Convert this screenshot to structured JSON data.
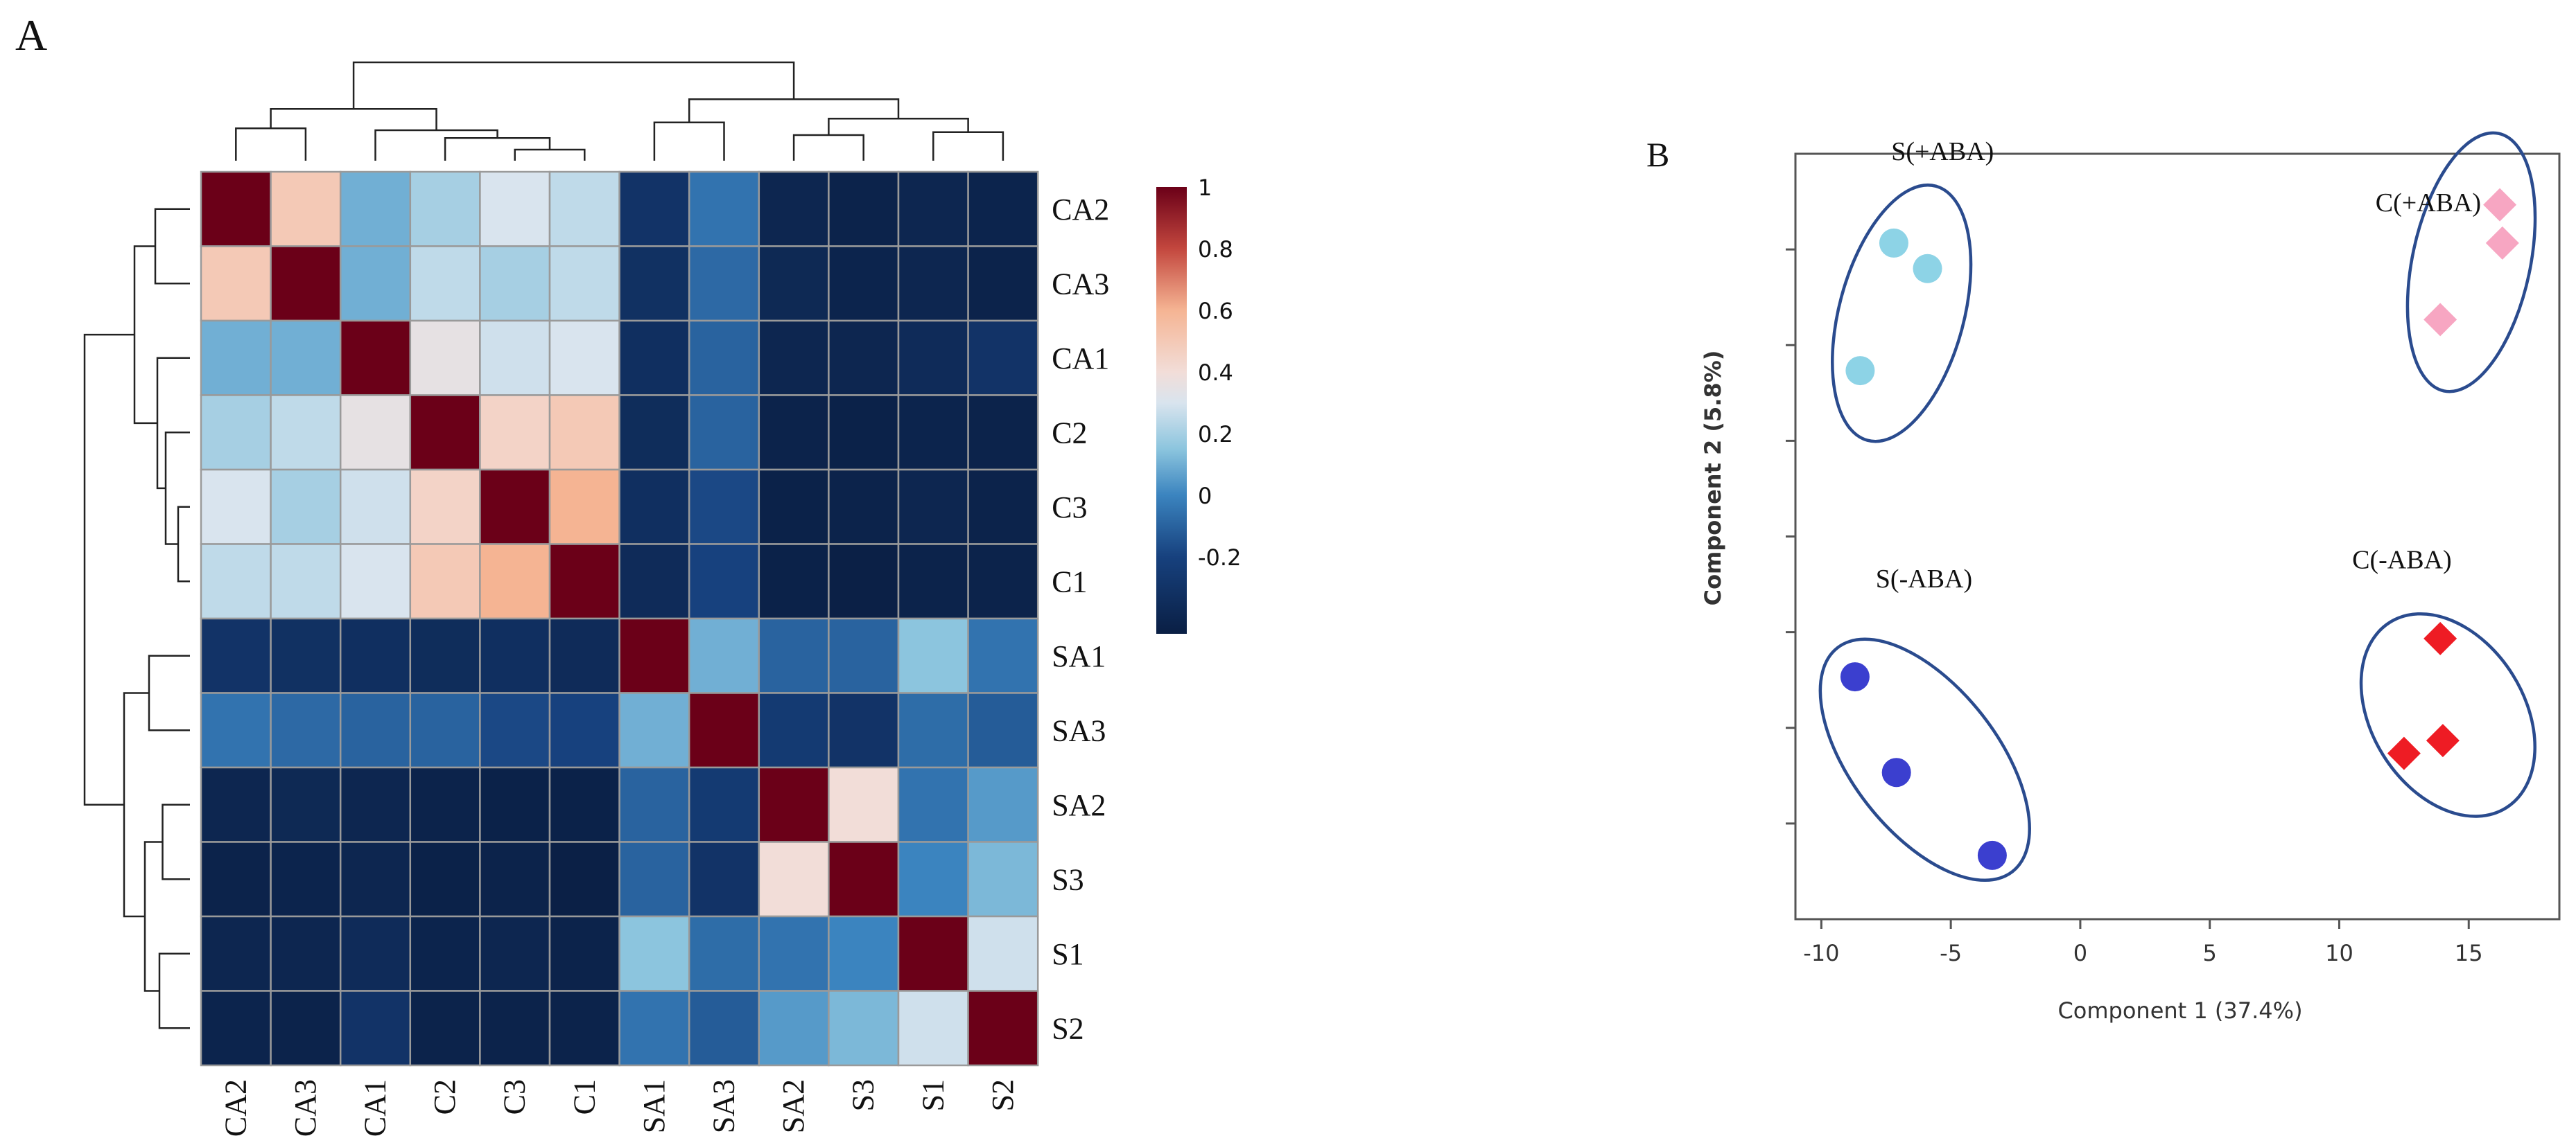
{
  "panels": {
    "a_label": "A",
    "b_label": "B"
  },
  "chart_data": [
    {
      "type": "heatmap",
      "samples": [
        "CA2",
        "CA3",
        "CA1",
        "C2",
        "C3",
        "C1",
        "SA1",
        "SA3",
        "SA2",
        "S3",
        "S1",
        "S2"
      ],
      "row_labels": [
        "CA2",
        "CA3",
        "CA1",
        "C2",
        "C3",
        "C1",
        "SA1",
        "SA3",
        "SA2",
        "S3",
        "S1",
        "S2"
      ],
      "col_labels": [
        "CA2",
        "CA3",
        "CA1",
        "C2",
        "C3",
        "C1",
        "SA1",
        "SA3",
        "SA2",
        "S3",
        "S1",
        "S2"
      ],
      "values": [
        [
          1.0,
          0.5,
          0.1,
          0.2,
          0.3,
          0.25,
          -0.3,
          -0.05,
          -0.4,
          -0.42,
          -0.4,
          -0.41
        ],
        [
          0.5,
          1.0,
          0.1,
          0.25,
          0.2,
          0.25,
          -0.32,
          -0.08,
          -0.38,
          -0.41,
          -0.4,
          -0.42
        ],
        [
          0.1,
          0.1,
          1.0,
          0.35,
          0.28,
          0.3,
          -0.33,
          -0.1,
          -0.4,
          -0.4,
          -0.36,
          -0.3
        ],
        [
          0.2,
          0.25,
          0.35,
          1.0,
          0.45,
          0.5,
          -0.35,
          -0.1,
          -0.42,
          -0.43,
          -0.41,
          -0.42
        ],
        [
          0.3,
          0.2,
          0.28,
          0.45,
          1.0,
          0.6,
          -0.33,
          -0.18,
          -0.43,
          -0.42,
          -0.4,
          -0.42
        ],
        [
          0.25,
          0.25,
          0.3,
          0.5,
          0.6,
          1.0,
          -0.36,
          -0.2,
          -0.43,
          -0.44,
          -0.42,
          -0.42
        ],
        [
          -0.3,
          -0.32,
          -0.33,
          -0.35,
          -0.33,
          -0.36,
          1.0,
          0.1,
          -0.1,
          -0.1,
          0.15,
          -0.05
        ],
        [
          -0.05,
          -0.08,
          -0.1,
          -0.1,
          -0.18,
          -0.2,
          0.1,
          1.0,
          -0.25,
          -0.3,
          -0.07,
          -0.12
        ],
        [
          -0.4,
          -0.38,
          -0.4,
          -0.42,
          -0.43,
          -0.43,
          -0.1,
          -0.25,
          1.0,
          0.4,
          -0.05,
          0.05
        ],
        [
          -0.42,
          -0.41,
          -0.4,
          -0.43,
          -0.42,
          -0.44,
          -0.1,
          -0.3,
          0.4,
          1.0,
          0.0,
          0.12
        ],
        [
          -0.4,
          -0.4,
          -0.36,
          -0.41,
          -0.4,
          -0.42,
          0.15,
          -0.07,
          -0.05,
          0.0,
          1.0,
          0.28
        ],
        [
          -0.41,
          -0.42,
          -0.3,
          -0.42,
          -0.42,
          -0.42,
          -0.05,
          -0.12,
          0.05,
          0.12,
          0.28,
          1.0
        ]
      ],
      "colorbar": {
        "ticks": [
          1,
          0.8,
          0.6,
          0.4,
          0.2,
          0,
          -0.2
        ],
        "min": -0.45,
        "max": 1.0
      },
      "color_stops": [
        {
          "v": -0.45,
          "c": "#0a1f44"
        },
        {
          "v": -0.2,
          "c": "#17417e"
        },
        {
          "v": 0.0,
          "c": "#3b84bf"
        },
        {
          "v": 0.15,
          "c": "#8cc5de"
        },
        {
          "v": 0.3,
          "c": "#d9e4ee"
        },
        {
          "v": 0.4,
          "c": "#f2ddd8"
        },
        {
          "v": 0.6,
          "c": "#f5b493"
        },
        {
          "v": 0.8,
          "c": "#c3473e"
        },
        {
          "v": 1.0,
          "c": "#6b0018"
        }
      ],
      "dendrogram": "both"
    },
    {
      "type": "scatter",
      "xlabel": "Component 1 (37.4%)",
      "ylabel": "Component 2 (5.8%)",
      "xlim": [
        -11,
        18.5
      ],
      "ylim": [
        -6,
        6
      ],
      "x_ticks": [
        -10,
        -5,
        0,
        5,
        10,
        15
      ],
      "groups": [
        {
          "name": "S(+ABA)",
          "marker": "circle",
          "color": "#8dd3e6",
          "points": [
            [
              -7.2,
              4.6
            ],
            [
              -5.9,
              4.2
            ],
            [
              -8.5,
              2.6
            ]
          ]
        },
        {
          "name": "C(+ABA)",
          "marker": "diamond",
          "color": "#f7a6c2",
          "points": [
            [
              16.2,
              5.2
            ],
            [
              16.3,
              4.6
            ],
            [
              13.9,
              3.4
            ]
          ]
        },
        {
          "name": "S(-ABA)",
          "marker": "circle",
          "color": "#3b3fcf",
          "points": [
            [
              -8.7,
              -2.2
            ],
            [
              -7.1,
              -3.7
            ],
            [
              -3.4,
              -5.0
            ]
          ]
        },
        {
          "name": "C(-ABA)",
          "marker": "diamond",
          "color": "#ee1c24",
          "points": [
            [
              13.9,
              -1.6
            ],
            [
              12.5,
              -3.4
            ],
            [
              14.0,
              -3.2
            ]
          ]
        }
      ],
      "ellipse_color": "#2a4b8e"
    }
  ]
}
